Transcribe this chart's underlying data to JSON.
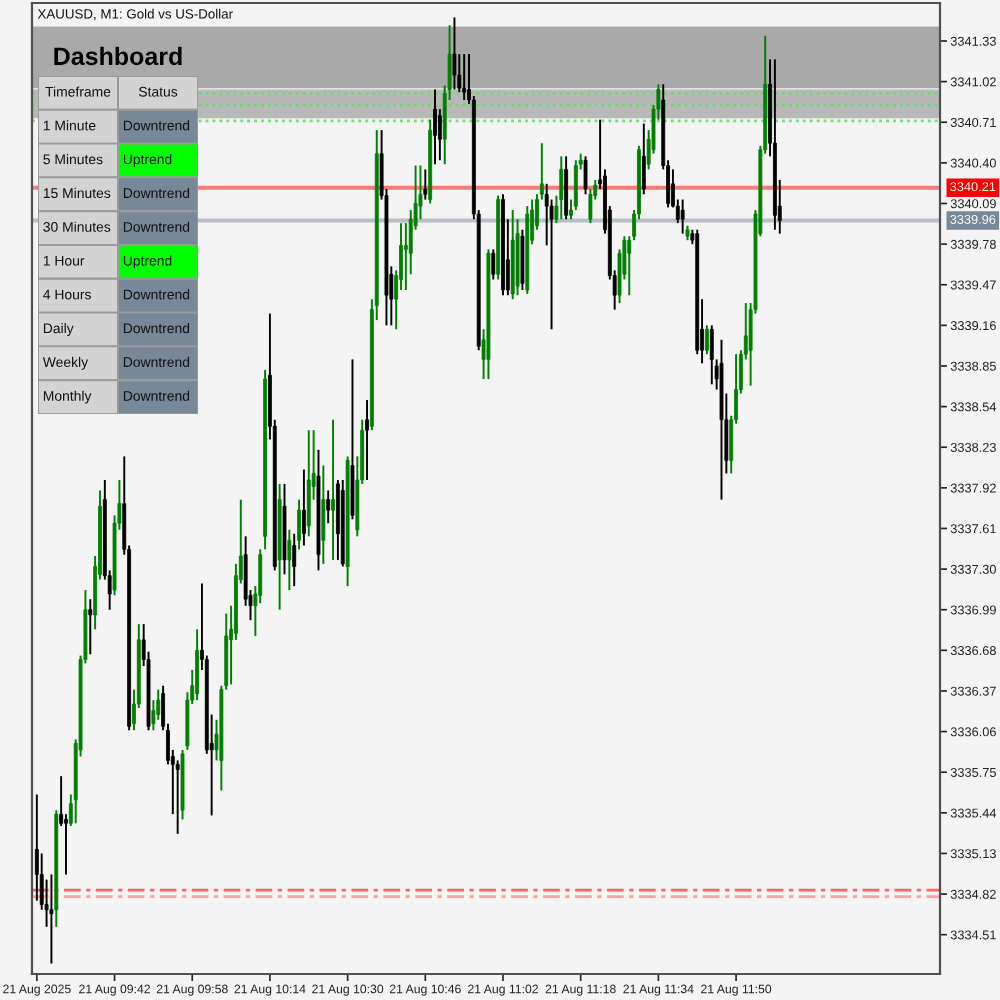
{
  "chart_data": [
    {
      "type": "candlestick",
      "title": "XAUUSD, M1: Gold vs US-Dollar",
      "x": [
        "2025-08-21T09:26",
        "2025-08-21T09:27",
        "2025-08-21T09:28",
        "2025-08-21T09:29",
        "2025-08-21T09:30",
        "2025-08-21T09:31",
        "2025-08-21T09:32",
        "2025-08-21T09:33",
        "2025-08-21T09:34",
        "2025-08-21T09:35",
        "2025-08-21T09:36",
        "2025-08-21T09:37",
        "2025-08-21T09:38",
        "2025-08-21T09:39",
        "2025-08-21T09:40",
        "2025-08-21T09:41",
        "2025-08-21T09:42",
        "2025-08-21T09:43",
        "2025-08-21T09:44",
        "2025-08-21T09:45",
        "2025-08-21T09:46",
        "2025-08-21T09:47",
        "2025-08-21T09:48",
        "2025-08-21T09:49",
        "2025-08-21T09:50",
        "2025-08-21T09:51",
        "2025-08-21T09:52",
        "2025-08-21T09:53",
        "2025-08-21T09:54",
        "2025-08-21T09:55",
        "2025-08-21T09:56",
        "2025-08-21T09:57",
        "2025-08-21T09:58",
        "2025-08-21T09:59",
        "2025-08-21T10:00",
        "2025-08-21T10:01",
        "2025-08-21T10:02",
        "2025-08-21T10:03",
        "2025-08-21T10:04",
        "2025-08-21T10:05",
        "2025-08-21T10:06",
        "2025-08-21T10:07",
        "2025-08-21T10:08",
        "2025-08-21T10:09",
        "2025-08-21T10:10",
        "2025-08-21T10:11",
        "2025-08-21T10:12",
        "2025-08-21T10:13",
        "2025-08-21T10:14",
        "2025-08-21T10:15",
        "2025-08-21T10:16",
        "2025-08-21T10:17",
        "2025-08-21T10:18",
        "2025-08-21T10:19",
        "2025-08-21T10:20",
        "2025-08-21T10:21",
        "2025-08-21T10:22",
        "2025-08-21T10:23",
        "2025-08-21T10:24",
        "2025-08-21T10:25",
        "2025-08-21T10:26",
        "2025-08-21T10:27",
        "2025-08-21T10:28",
        "2025-08-21T10:29",
        "2025-08-21T10:30",
        "2025-08-21T10:31",
        "2025-08-21T10:32",
        "2025-08-21T10:33",
        "2025-08-21T10:34",
        "2025-08-21T10:35",
        "2025-08-21T10:36",
        "2025-08-21T10:37",
        "2025-08-21T10:38",
        "2025-08-21T10:39",
        "2025-08-21T10:40",
        "2025-08-21T10:41",
        "2025-08-21T10:42",
        "2025-08-21T10:43",
        "2025-08-21T10:44",
        "2025-08-21T10:45",
        "2025-08-21T10:46",
        "2025-08-21T10:47",
        "2025-08-21T10:48",
        "2025-08-21T10:49",
        "2025-08-21T10:50",
        "2025-08-21T10:51",
        "2025-08-21T10:52",
        "2025-08-21T10:53",
        "2025-08-21T10:54",
        "2025-08-21T10:55",
        "2025-08-21T10:56",
        "2025-08-21T10:57",
        "2025-08-21T10:58",
        "2025-08-21T10:59",
        "2025-08-21T11:00",
        "2025-08-21T11:01",
        "2025-08-21T11:02",
        "2025-08-21T11:03",
        "2025-08-21T11:04",
        "2025-08-21T11:05",
        "2025-08-21T11:06",
        "2025-08-21T11:07",
        "2025-08-21T11:08",
        "2025-08-21T11:09",
        "2025-08-21T11:10",
        "2025-08-21T11:11",
        "2025-08-21T11:12",
        "2025-08-21T11:13",
        "2025-08-21T11:14",
        "2025-08-21T11:15",
        "2025-08-21T11:16",
        "2025-08-21T11:17",
        "2025-08-21T11:18",
        "2025-08-21T11:19",
        "2025-08-21T11:20",
        "2025-08-21T11:21",
        "2025-08-21T11:22",
        "2025-08-21T11:23",
        "2025-08-21T11:24",
        "2025-08-21T11:25",
        "2025-08-21T11:26",
        "2025-08-21T11:27",
        "2025-08-21T11:28",
        "2025-08-21T11:29",
        "2025-08-21T11:30",
        "2025-08-21T11:31",
        "2025-08-21T11:32",
        "2025-08-21T11:33",
        "2025-08-21T11:34",
        "2025-08-21T11:35",
        "2025-08-21T11:36",
        "2025-08-21T11:37",
        "2025-08-21T11:38",
        "2025-08-21T11:39",
        "2025-08-21T11:40",
        "2025-08-21T11:41",
        "2025-08-21T11:42",
        "2025-08-21T11:43",
        "2025-08-21T11:44",
        "2025-08-21T11:45",
        "2025-08-21T11:46",
        "2025-08-21T11:47",
        "2025-08-21T11:48",
        "2025-08-21T11:49",
        "2025-08-21T11:50",
        "2025-08-21T11:51",
        "2025-08-21T11:52",
        "2025-08-21T11:53",
        "2025-08-21T11:54",
        "2025-08-21T11:55",
        "2025-08-21T11:56",
        "2025-08-21T11:57",
        "2025-08-21T11:58",
        "2025-08-21T11:59"
      ],
      "ohlc": [
        [
          3335.16,
          3335.58,
          3334.77,
          3334.97
        ],
        [
          3334.97,
          3335.13,
          3334.7,
          3334.74
        ],
        [
          3334.74,
          3334.93,
          3334.57,
          3334.7
        ],
        [
          3334.7,
          3334.97,
          3334.29,
          3334.67
        ],
        [
          3334.7,
          3335.46,
          3334.57,
          3335.43
        ],
        [
          3335.43,
          3335.72,
          3335.34,
          3335.36
        ],
        [
          3335.39,
          3335.43,
          3334.97,
          3335.36
        ],
        [
          3335.36,
          3335.58,
          3335.34,
          3335.51
        ],
        [
          3335.54,
          3336.0,
          3335.36,
          3335.97
        ],
        [
          3335.92,
          3336.64,
          3335.87,
          3336.61
        ],
        [
          3336.61,
          3337.14,
          3336.58,
          3336.99
        ],
        [
          3336.99,
          3337.07,
          3336.65,
          3336.95
        ],
        [
          3336.95,
          3337.4,
          3336.84,
          3337.32
        ],
        [
          3337.26,
          3337.9,
          3337.22,
          3337.78
        ],
        [
          3337.83,
          3337.98,
          3337.22,
          3337.25
        ],
        [
          3337.25,
          3337.29,
          3336.99,
          3337.11
        ],
        [
          3337.14,
          3337.71,
          3337.1,
          3337.65
        ],
        [
          3337.65,
          3337.98,
          3337.6,
          3337.8
        ],
        [
          3337.8,
          3338.16,
          3337.41,
          3337.45
        ],
        [
          3337.45,
          3337.48,
          3336.07,
          3336.1
        ],
        [
          3336.12,
          3336.38,
          3336.07,
          3336.27
        ],
        [
          3336.27,
          3336.88,
          3336.24,
          3336.76
        ],
        [
          3336.76,
          3336.88,
          3336.56,
          3336.61
        ],
        [
          3336.61,
          3336.67,
          3336.07,
          3336.1
        ],
        [
          3336.12,
          3336.3,
          3336.07,
          3336.22
        ],
        [
          3336.19,
          3336.38,
          3336.15,
          3336.3
        ],
        [
          3336.35,
          3336.41,
          3336.07,
          3336.1
        ],
        [
          3336.07,
          3336.12,
          3335.81,
          3335.84
        ],
        [
          3335.87,
          3335.92,
          3335.43,
          3335.81
        ],
        [
          3335.81,
          3335.84,
          3335.28,
          3335.77
        ],
        [
          3335.46,
          3335.92,
          3335.39,
          3335.89
        ],
        [
          3335.95,
          3336.36,
          3335.92,
          3336.3
        ],
        [
          3336.3,
          3336.53,
          3336.27,
          3336.41
        ],
        [
          3336.35,
          3336.84,
          3336.3,
          3336.68
        ],
        [
          3336.68,
          3337.19,
          3336.53,
          3336.61
        ],
        [
          3336.61,
          3336.64,
          3335.89,
          3335.92
        ],
        [
          3335.97,
          3336.19,
          3335.42,
          3335.92
        ],
        [
          3335.92,
          3336.15,
          3335.84,
          3336.04
        ],
        [
          3335.84,
          3336.41,
          3335.61,
          3336.38
        ],
        [
          3336.41,
          3336.96,
          3336.38,
          3336.79
        ],
        [
          3336.76,
          3337.02,
          3336.42,
          3336.84
        ],
        [
          3336.81,
          3337.34,
          3336.76,
          3337.25
        ],
        [
          3337.22,
          3337.83,
          3337.19,
          3337.4
        ],
        [
          3337.41,
          3337.55,
          3337.02,
          3337.07
        ],
        [
          3337.1,
          3337.14,
          3336.91,
          3337.02
        ],
        [
          3337.02,
          3337.17,
          3336.79,
          3337.11
        ],
        [
          3337.1,
          3337.45,
          3337.04,
          3337.41
        ],
        [
          3337.55,
          3338.82,
          3337.45,
          3338.75
        ],
        [
          3338.78,
          3339.25,
          3338.29,
          3338.39
        ],
        [
          3338.39,
          3338.44,
          3337.29,
          3337.32
        ],
        [
          3337.37,
          3337.95,
          3336.99,
          3337.83
        ],
        [
          3337.78,
          3337.95,
          3337.26,
          3337.37
        ],
        [
          3337.37,
          3337.6,
          3337.14,
          3337.52
        ],
        [
          3337.48,
          3337.57,
          3337.17,
          3337.32
        ],
        [
          3337.52,
          3337.83,
          3337.45,
          3337.75
        ],
        [
          3337.75,
          3338.06,
          3337.48,
          3337.57
        ],
        [
          3337.63,
          3338.36,
          3337.55,
          3337.98
        ],
        [
          3337.93,
          3338.36,
          3337.83,
          3338.03
        ],
        [
          3338.01,
          3338.21,
          3337.29,
          3337.41
        ],
        [
          3337.52,
          3338.09,
          3337.34,
          3337.83
        ],
        [
          3337.83,
          3337.9,
          3337.65,
          3337.75
        ],
        [
          3337.75,
          3338.44,
          3337.37,
          3337.83
        ],
        [
          3337.95,
          3337.98,
          3337.37,
          3337.57
        ],
        [
          3337.9,
          3337.98,
          3337.32,
          3337.34
        ],
        [
          3337.32,
          3338.16,
          3337.17,
          3338.13
        ],
        [
          3338.09,
          3338.9,
          3337.68,
          3337.71
        ],
        [
          3337.6,
          3338.16,
          3337.55,
          3337.98
        ],
        [
          3337.98,
          3338.44,
          3337.95,
          3338.36
        ],
        [
          3338.44,
          3338.59,
          3337.98,
          3338.36
        ],
        [
          3338.39,
          3339.36,
          3338.36,
          3339.28
        ],
        [
          3339.31,
          3340.65,
          3339.2,
          3340.47
        ],
        [
          3340.47,
          3340.65,
          3340.12,
          3340.15
        ],
        [
          3340.15,
          3340.2,
          3339.16,
          3339.39
        ],
        [
          3339.55,
          3339.61,
          3339.16,
          3339.36
        ],
        [
          3339.36,
          3339.58,
          3339.13,
          3339.54
        ],
        [
          3339.51,
          3339.94,
          3339.43,
          3339.77
        ],
        [
          3339.74,
          3339.94,
          3339.43,
          3339.77
        ],
        [
          3339.71,
          3340.04,
          3339.55,
          3339.97
        ],
        [
          3339.92,
          3340.38,
          3339.89,
          3340.09
        ],
        [
          3340.07,
          3340.38,
          3339.97,
          3340.16
        ],
        [
          3340.2,
          3340.35,
          3340.12,
          3340.16
        ],
        [
          3340.12,
          3340.73,
          3340.09,
          3340.65
        ],
        [
          3340.81,
          3340.96,
          3340.39,
          3340.61
        ],
        [
          3340.76,
          3340.81,
          3340.42,
          3340.58
        ],
        [
          3340.58,
          3340.99,
          3340.39,
          3340.93
        ],
        [
          3340.96,
          3341.45,
          3340.88,
          3341.23
        ],
        [
          3341.23,
          3341.51,
          3340.96,
          3341.07
        ],
        [
          3341.07,
          3341.23,
          3340.94,
          3340.97
        ],
        [
          3340.97,
          3341.23,
          3340.88,
          3340.94
        ],
        [
          3340.96,
          3341.23,
          3340.85,
          3340.88
        ],
        [
          3340.88,
          3340.91,
          3339.97,
          3340.01
        ],
        [
          3340.01,
          3340.04,
          3338.97,
          3339.0
        ],
        [
          3338.9,
          3339.13,
          3338.75,
          3339.05
        ],
        [
          3338.9,
          3339.74,
          3338.75,
          3339.71
        ],
        [
          3339.71,
          3339.74,
          3339.51,
          3339.55
        ],
        [
          3339.55,
          3340.15,
          3339.51,
          3340.12
        ],
        [
          3340.12,
          3340.16,
          3339.39,
          3339.43
        ],
        [
          3339.66,
          3339.97,
          3339.39,
          3339.43
        ],
        [
          3339.4,
          3340.04,
          3339.36,
          3339.81
        ],
        [
          3339.46,
          3339.97,
          3339.39,
          3339.86
        ],
        [
          3339.84,
          3339.89,
          3339.43,
          3339.48
        ],
        [
          3339.43,
          3340.07,
          3339.4,
          3340.01
        ],
        [
          3339.81,
          3340.12,
          3339.78,
          3340.04
        ],
        [
          3339.92,
          3340.16,
          3339.89,
          3340.12
        ],
        [
          3340.16,
          3340.55,
          3340.12,
          3340.24
        ],
        [
          3340.16,
          3340.24,
          3339.77,
          3340.07
        ],
        [
          3340.07,
          3340.12,
          3339.13,
          3339.97
        ],
        [
          3339.97,
          3340.15,
          3339.94,
          3340.07
        ],
        [
          3340.12,
          3340.45,
          3339.97,
          3340.35
        ],
        [
          3340.35,
          3340.45,
          3339.97,
          3340.0
        ],
        [
          3340.0,
          3340.12,
          3339.97,
          3340.04
        ],
        [
          3340.07,
          3340.42,
          3340.04,
          3340.38
        ],
        [
          3340.39,
          3340.47,
          3340.35,
          3340.42
        ],
        [
          3340.42,
          3340.45,
          3340.16,
          3340.2
        ],
        [
          3339.97,
          3340.2,
          3339.94,
          3340.16
        ],
        [
          3340.15,
          3340.27,
          3340.12,
          3340.23
        ],
        [
          3340.27,
          3340.73,
          3340.2,
          3340.24
        ],
        [
          3340.3,
          3340.35,
          3339.86,
          3339.89
        ],
        [
          3340.04,
          3340.07,
          3339.51,
          3339.54
        ],
        [
          3339.54,
          3339.58,
          3339.28,
          3339.39
        ],
        [
          3339.39,
          3339.74,
          3339.33,
          3339.71
        ],
        [
          3339.55,
          3339.84,
          3339.51,
          3339.81
        ],
        [
          3339.71,
          3339.84,
          3339.39,
          3339.81
        ],
        [
          3339.84,
          3340.04,
          3339.81,
          3340.01
        ],
        [
          3340.01,
          3340.53,
          3339.97,
          3340.5
        ],
        [
          3340.45,
          3340.7,
          3340.16,
          3340.2
        ],
        [
          3340.39,
          3340.65,
          3340.35,
          3340.58
        ],
        [
          3340.5,
          3340.84,
          3340.47,
          3340.81
        ],
        [
          3340.81,
          3341.0,
          3340.73,
          3340.96
        ],
        [
          3340.88,
          3341.0,
          3340.35,
          3340.38
        ],
        [
          3340.38,
          3340.42,
          3340.06,
          3340.09
        ],
        [
          3340.24,
          3340.35,
          3340.06,
          3340.07
        ],
        [
          3340.07,
          3340.12,
          3339.94,
          3339.97
        ],
        [
          3340.04,
          3340.12,
          3339.86,
          3339.97
        ],
        [
          3339.84,
          3339.92,
          3339.81,
          3339.89
        ],
        [
          3339.86,
          3339.89,
          3339.78,
          3339.81
        ],
        [
          3339.86,
          3339.89,
          3338.94,
          3338.97
        ],
        [
          3339.13,
          3339.36,
          3338.87,
          3338.97
        ],
        [
          3338.97,
          3339.16,
          3338.94,
          3339.13
        ],
        [
          3339.13,
          3339.16,
          3338.71,
          3338.9
        ],
        [
          3338.85,
          3338.9,
          3338.67,
          3338.75
        ],
        [
          3338.87,
          3339.05,
          3337.83,
          3338.44
        ],
        [
          3338.44,
          3338.64,
          3338.03,
          3338.13
        ],
        [
          3338.13,
          3338.47,
          3338.03,
          3338.44
        ],
        [
          3338.44,
          3338.94,
          3338.41,
          3338.67
        ],
        [
          3338.67,
          3338.97,
          3338.64,
          3338.94
        ],
        [
          3338.94,
          3339.33,
          3338.9,
          3339.08
        ],
        [
          3338.97,
          3339.33,
          3338.7,
          3339.28
        ],
        [
          3339.28,
          3340.04,
          3339.25,
          3340.01
        ],
        [
          3339.86,
          3340.53,
          3339.84,
          3340.5
        ],
        [
          3340.5,
          3341.37,
          3340.47,
          3341.0
        ],
        [
          3341.0,
          3341.19,
          3340.45,
          3340.55
        ],
        [
          3340.55,
          3341.19,
          3339.89,
          3340.0
        ],
        [
          3340.07,
          3340.27,
          3339.86,
          3339.96
        ]
      ],
      "colors": [
        "#000000",
        "#000000",
        "#000000",
        "#000000",
        "#008000",
        "#000000",
        "#000000",
        "#008000",
        "#008000",
        "#008000",
        "#008000",
        "#000000",
        "#008000",
        "#008000",
        "#000000",
        "#000000",
        "#008000",
        "#008000",
        "#000000",
        "#000000",
        "#008000",
        "#008000",
        "#000000",
        "#000000",
        "#008000",
        "#008000",
        "#000000",
        "#000000",
        "#000000",
        "#000000",
        "#008000",
        "#008000",
        "#008000",
        "#008000",
        "#000000",
        "#000000",
        "#000000",
        "#008000",
        "#008000",
        "#008000",
        "#008000",
        "#008000",
        "#008000",
        "#000000",
        "#000000",
        "#008000",
        "#008000",
        "#008000",
        "#000000",
        "#000000",
        "#008000",
        "#000000",
        "#008000",
        "#000000",
        "#008000",
        "#000000",
        "#008000",
        "#008000",
        "#000000",
        "#008000",
        "#000000",
        "#008000",
        "#000000",
        "#000000",
        "#008000",
        "#000000",
        "#008000",
        "#008000",
        "#000000",
        "#008000",
        "#008000",
        "#000000",
        "#000000",
        "#000000",
        "#008000",
        "#008000",
        "#008000",
        "#008000",
        "#008000",
        "#008000",
        "#000000",
        "#008000",
        "#000000",
        "#000000",
        "#008000",
        "#008000",
        "#000000",
        "#000000",
        "#000000",
        "#000000",
        "#000000",
        "#000000",
        "#008000",
        "#008000",
        "#000000",
        "#008000",
        "#000000",
        "#000000",
        "#008000",
        "#008000",
        "#000000",
        "#008000",
        "#008000",
        "#008000",
        "#008000",
        "#000000",
        "#000000",
        "#008000",
        "#008000",
        "#000000",
        "#008000",
        "#008000",
        "#008000",
        "#000000",
        "#008000",
        "#008000",
        "#000000",
        "#000000",
        "#000000",
        "#000000",
        "#008000",
        "#008000",
        "#008000",
        "#008000",
        "#008000",
        "#000000",
        "#008000",
        "#008000",
        "#008000",
        "#000000",
        "#000000",
        "#000000",
        "#000000",
        "#000000",
        "#008000",
        "#000000",
        "#000000",
        "#000000",
        "#008000",
        "#000000",
        "#000000",
        "#000000",
        "#000000",
        "#008000",
        "#008000",
        "#008000",
        "#008000",
        "#008000",
        "#008000",
        "#008000",
        "#008000",
        "#000000",
        "#000000",
        "#000000"
      ],
      "xlim": [
        "2025-08-21T09:25",
        "2025-08-21T12:32"
      ],
      "xticks": [
        {
          "value": "2025-08-21T09:26",
          "label": "21 Aug 2025"
        },
        {
          "value": "2025-08-21T09:42",
          "label": "21 Aug 09:42"
        },
        {
          "value": "2025-08-21T09:58",
          "label": "21 Aug 09:58"
        },
        {
          "value": "2025-08-21T10:14",
          "label": "21 Aug 10:14"
        },
        {
          "value": "2025-08-21T10:30",
          "label": "21 Aug 10:30"
        },
        {
          "value": "2025-08-21T10:46",
          "label": "21 Aug 10:46"
        },
        {
          "value": "2025-08-21T11:02",
          "label": "21 Aug 11:02"
        },
        {
          "value": "2025-08-21T11:18",
          "label": "21 Aug 11:18"
        },
        {
          "value": "2025-08-21T11:34",
          "label": "21 Aug 11:34"
        },
        {
          "value": "2025-08-21T11:50",
          "label": "21 Aug 11:50"
        }
      ],
      "ylim": [
        3334.21,
        3341.62
      ],
      "yticks": [
        3341.33,
        3341.02,
        3340.71,
        {
          "value": 3340.4,
          "label": "3340.40"
        },
        3340.09,
        3339.78,
        3339.47,
        3339.16,
        3338.85,
        3338.54,
        3338.23,
        3337.92,
        3337.61,
        {
          "value": 3337.3,
          "label": "3337.30"
        },
        3336.99,
        3336.68,
        3336.37,
        3336.06,
        3335.75,
        3335.44,
        3335.13,
        3334.82,
        3334.51
      ],
      "bands": [
        {
          "axis": "y",
          "from": 3340.97,
          "to": 3341.44,
          "color": "#a9a9a9"
        },
        {
          "axis": "y",
          "from": 3340.74,
          "to": 3340.96,
          "color": "#b8b8b8"
        }
      ],
      "ref_lines": [
        {
          "axis": "y",
          "value": 3340.93,
          "color": "#66dd66",
          "line_style": "dotted"
        },
        {
          "axis": "y",
          "value": 3340.84,
          "color": "#66dd66",
          "line_style": "dotted"
        },
        {
          "axis": "y",
          "value": 3340.72,
          "color": "#66dd66",
          "line_style": "dotted"
        },
        {
          "axis": "y",
          "value": 3340.21,
          "label": "3340.21",
          "color": "#ff0000",
          "line_style": "solid"
        },
        {
          "axis": "y",
          "value": 3339.96,
          "label": "3339.96",
          "color": "#778899",
          "line_style": "solid"
        },
        {
          "axis": "y",
          "value": 3334.85,
          "color": "#ff5555",
          "line_style": "dashdot"
        },
        {
          "axis": "y",
          "value": 3334.8,
          "color": "#ff9999",
          "line_style": "dashdot"
        }
      ]
    },
    {
      "type": "other",
      "title": "Dashboard",
      "annotations": [
        "Timeframe",
        "Status"
      ],
      "color": "#d3d3d3",
      "categories": [
        "1 Minute",
        "5 Minutes",
        "15 Minutes",
        "30 Minutes",
        "1 Hour",
        "4 Hours",
        "Daily",
        "Weekly",
        "Monthly"
      ],
      "value_labels": [
        "Downtrend",
        "Uptrend",
        "Downtrend",
        "Downtrend",
        "Uptrend",
        "Downtrend",
        "Downtrend",
        "Downtrend",
        "Downtrend"
      ],
      "colors": [
        "#778899",
        "#00ff00",
        "#778899",
        "#778899",
        "#00ff00",
        "#778899",
        "#778899",
        "#778899",
        "#778899"
      ]
    }
  ]
}
